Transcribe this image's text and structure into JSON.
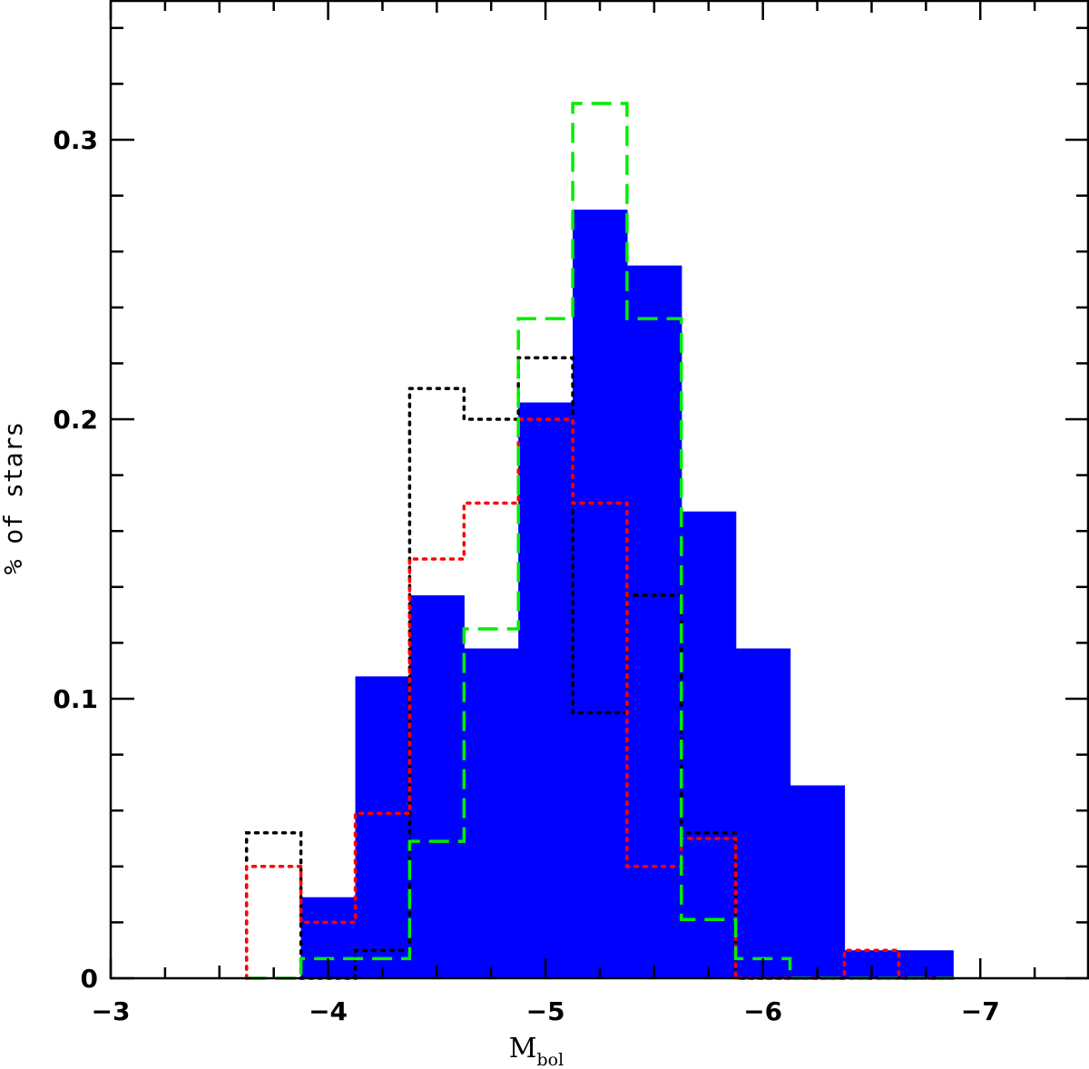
{
  "chart_data": {
    "type": "bar",
    "title": "",
    "xlabel": "M",
    "xlabel_subscript": "bol",
    "ylabel": "% of stars",
    "xlim": [
      -3,
      -7.5
    ],
    "ylim": [
      0,
      0.35
    ],
    "x_ticks": [
      -3,
      -4,
      -5,
      -6,
      -7
    ],
    "x_tick_labels": [
      "−3",
      "−4",
      "−5",
      "−6",
      "−7"
    ],
    "y_ticks": [
      0,
      0.1,
      0.2,
      0.3
    ],
    "y_tick_labels": [
      "0",
      "0.1",
      "0.2",
      "0.3"
    ],
    "bin_edges": [
      -3.625,
      -3.875,
      -4.125,
      -4.375,
      -4.625,
      -4.875,
      -5.125,
      -5.375,
      -5.625,
      -5.875,
      -6.125,
      -6.375,
      -6.625,
      -6.875
    ],
    "grid": false,
    "series": [
      {
        "style": "filled",
        "color": "#0000ff",
        "values": [
          0,
          0.029,
          0.108,
          0.137,
          0.118,
          0.206,
          0.275,
          0.255,
          0.167,
          0.118,
          0.069,
          0.01,
          0.01
        ]
      },
      {
        "style": "dotted",
        "color": "#000000",
        "values": [
          0.052,
          0,
          0.01,
          0.211,
          0.2,
          0.222,
          0.095,
          0.137,
          0.052,
          0,
          0,
          0,
          0
        ]
      },
      {
        "style": "dotted",
        "color": "#ff0000",
        "values": [
          0.04,
          0.02,
          0.059,
          0.15,
          0.17,
          0.2,
          0.17,
          0.04,
          0.05,
          0,
          0,
          0.01,
          0
        ]
      },
      {
        "style": "dashed",
        "color": "#00ee00",
        "values": [
          0,
          0.007,
          0.007,
          0.049,
          0.125,
          0.236,
          0.313,
          0.236,
          0.021,
          0.007,
          0,
          0,
          0
        ]
      }
    ]
  }
}
